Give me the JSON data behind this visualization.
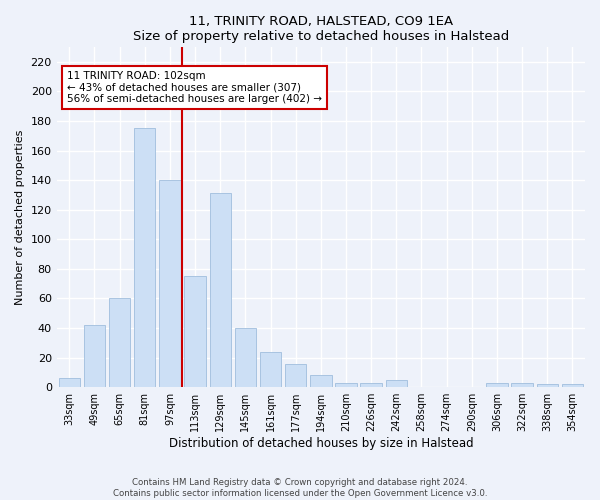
{
  "title": "11, TRINITY ROAD, HALSTEAD, CO9 1EA",
  "subtitle": "Size of property relative to detached houses in Halstead",
  "xlabel": "Distribution of detached houses by size in Halstead",
  "ylabel": "Number of detached properties",
  "categories": [
    "33sqm",
    "49sqm",
    "65sqm",
    "81sqm",
    "97sqm",
    "113sqm",
    "129sqm",
    "145sqm",
    "161sqm",
    "177sqm",
    "194sqm",
    "210sqm",
    "226sqm",
    "242sqm",
    "258sqm",
    "274sqm",
    "290sqm",
    "306sqm",
    "322sqm",
    "338sqm",
    "354sqm"
  ],
  "values": [
    6,
    42,
    60,
    175,
    140,
    75,
    131,
    40,
    24,
    16,
    8,
    3,
    3,
    5,
    0,
    0,
    0,
    3,
    3,
    2,
    2
  ],
  "bar_color": "#ccdff5",
  "bar_edge_color": "#a0bedd",
  "vline_x": 4.5,
  "vline_color": "#cc0000",
  "ylim": [
    0,
    230
  ],
  "yticks": [
    0,
    20,
    40,
    60,
    80,
    100,
    120,
    140,
    160,
    180,
    200,
    220
  ],
  "annotation_box_text": "11 TRINITY ROAD: 102sqm\n← 43% of detached houses are smaller (307)\n56% of semi-detached houses are larger (402) →",
  "annotation_box_color": "#cc0000",
  "annotation_box_fill": "#ffffff",
  "footer_line1": "Contains HM Land Registry data © Crown copyright and database right 2024.",
  "footer_line2": "Contains public sector information licensed under the Open Government Licence v3.0.",
  "background_color": "#eef2fa",
  "grid_color": "#ffffff"
}
